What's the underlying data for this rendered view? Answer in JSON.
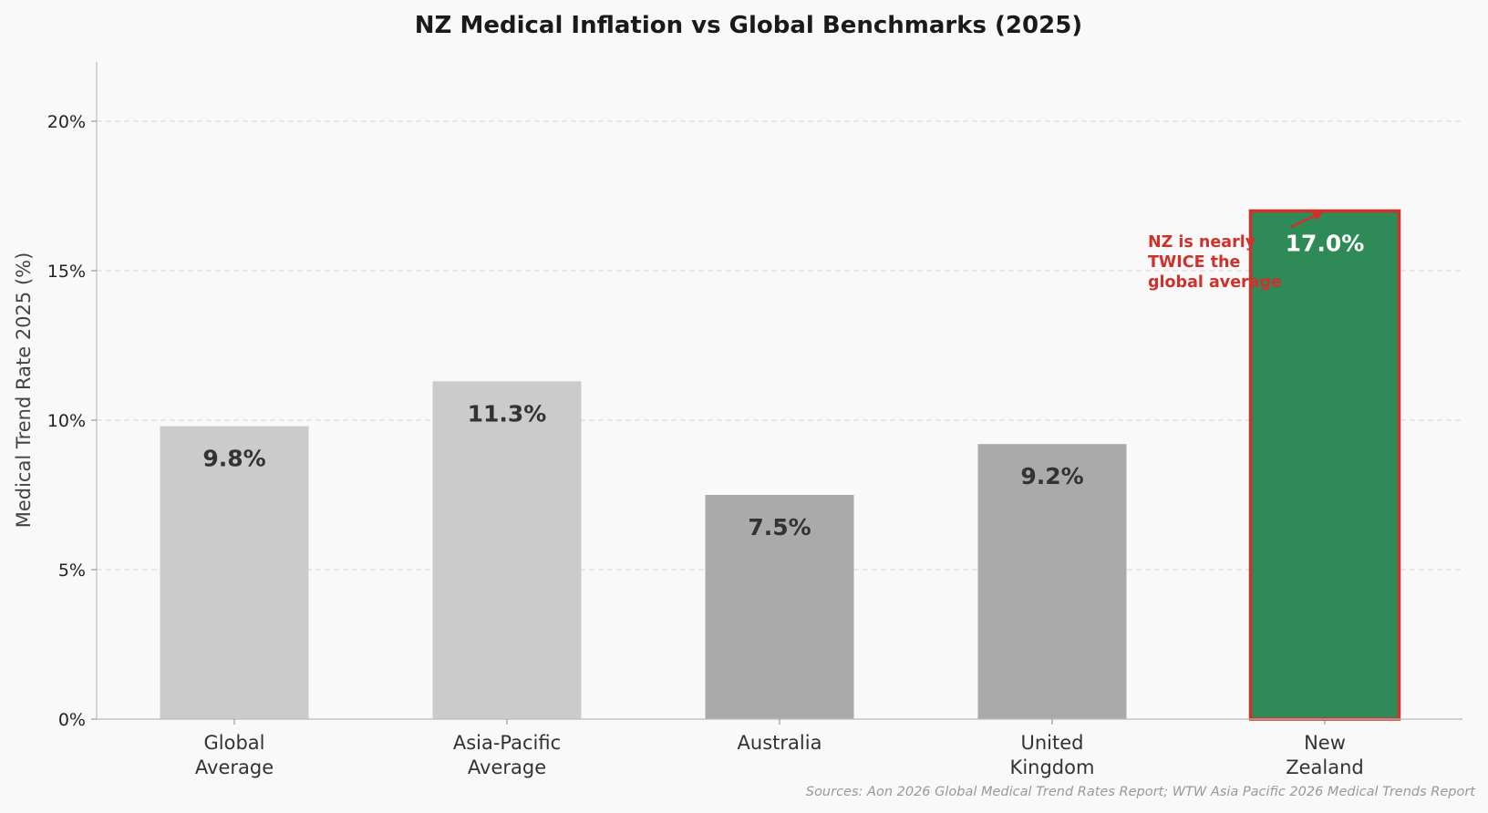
{
  "chart_data": {
    "type": "bar",
    "title": "NZ Medical Inflation vs Global Benchmarks (2025)",
    "xlabel": "",
    "ylabel": "Medical Trend Rate 2025 (%)",
    "ylim": [
      0,
      22
    ],
    "yticks": [
      0,
      5,
      10,
      15,
      20
    ],
    "ytick_labels": [
      "0%",
      "5%",
      "10%",
      "15%",
      "20%"
    ],
    "grid": "y, dashed",
    "categories": [
      [
        "Global",
        "Average"
      ],
      [
        "Asia-Pacific",
        "Average"
      ],
      [
        "Australia"
      ],
      [
        "United",
        "Kingdom"
      ],
      [
        "New",
        "Zealand"
      ]
    ],
    "values": [
      9.8,
      11.3,
      7.5,
      9.2,
      17.0
    ],
    "data_labels": [
      "9.8%",
      "11.3%",
      "7.5%",
      "9.2%",
      "17.0%"
    ],
    "colors": [
      "#cbcbcb",
      "#cbcbcb",
      "#aaaaaa",
      "#aaaaaa",
      "#2e8a57"
    ],
    "highlight": {
      "index": 4,
      "edge_color": "#d0312d"
    },
    "annotation": {
      "lines": [
        "NZ is nearly",
        "TWICE the",
        "global average"
      ],
      "color": "#d0312d",
      "points_to": "New Zealand bar top"
    },
    "source": "Sources: Aon 2026 Global Medical Trend Rates Report; WTW Asia Pacific 2026 Medical Trends Report"
  }
}
